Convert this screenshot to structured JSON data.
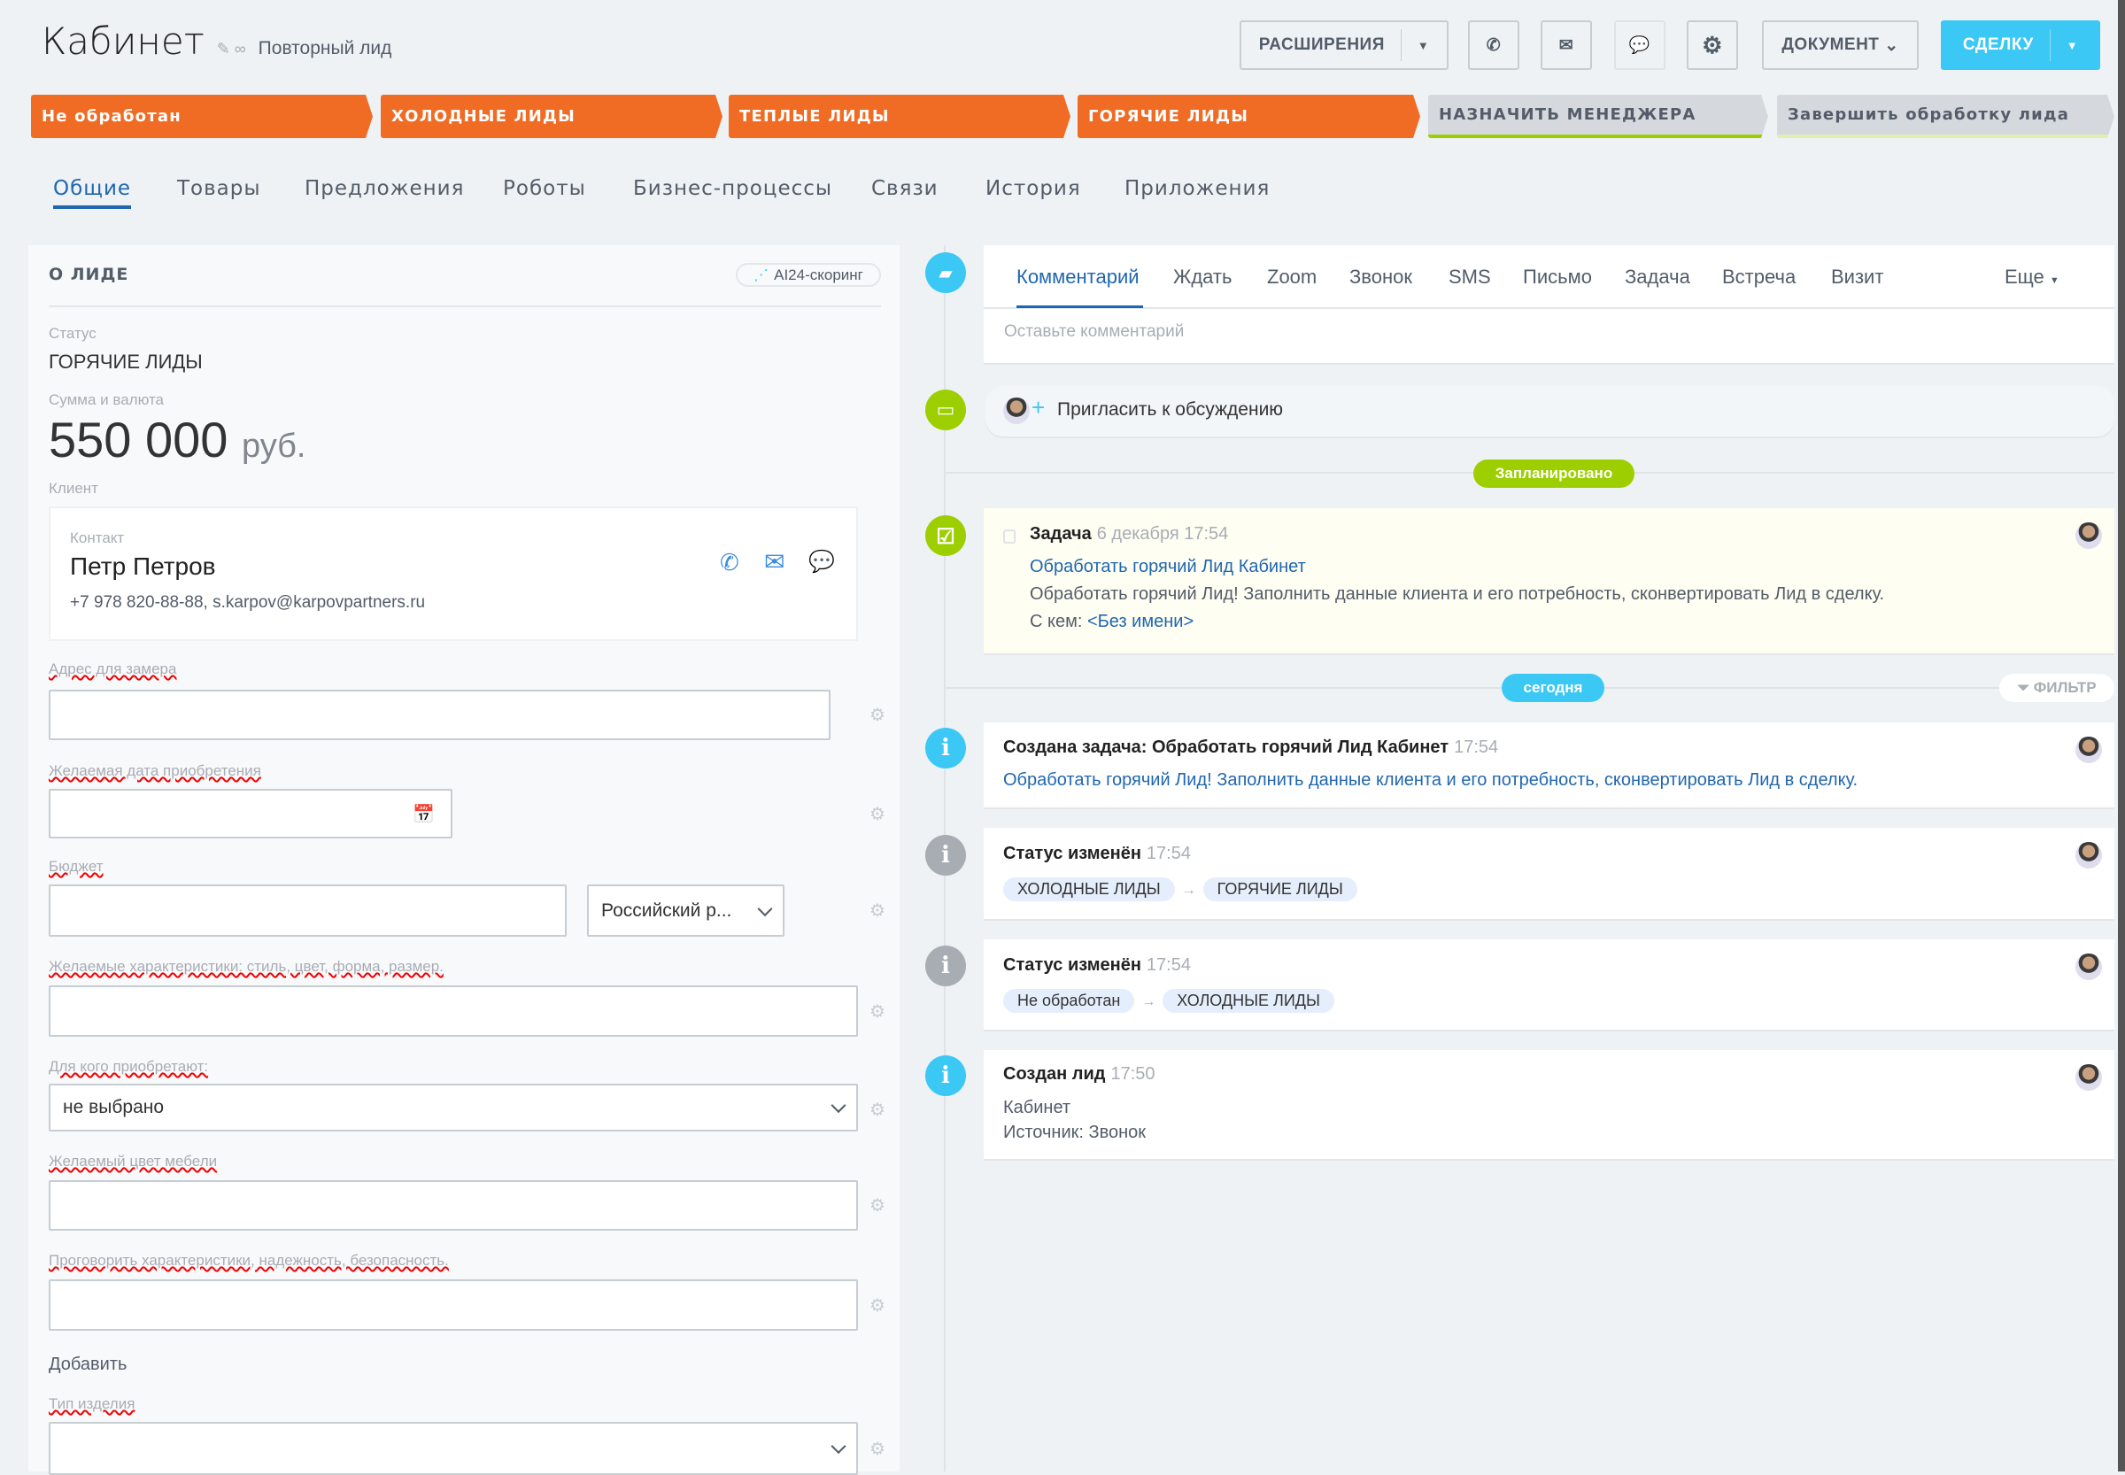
{
  "header": {
    "title": "Кабинет",
    "subtitle": "Повторный лид",
    "toolbar": {
      "extensions": "РАСШИРЕНИЯ",
      "document": "ДОКУМЕНТ",
      "deal": "СДЕЛКУ"
    }
  },
  "stages": [
    "Не обработан",
    "ХОЛОДНЫЕ ЛИДЫ",
    "ТЕПЛЫЕ ЛИДЫ",
    "ГОРЯЧИЕ ЛИДЫ",
    "НАЗНАЧИТЬ МЕНЕДЖЕРА",
    "Завершить обработку лида"
  ],
  "tabs": [
    "Общие",
    "Товары",
    "Предложения",
    "Роботы",
    "Бизнес-процессы",
    "Связи",
    "История",
    "Приложения"
  ],
  "about": {
    "heading": "О ЛИДЕ",
    "scoring": "AI24-скоринг",
    "status_label": "Статус",
    "status": "ГОРЯЧИЕ ЛИДЫ",
    "sum_label": "Сумма и валюта",
    "sum": "550 000",
    "currency": "руб.",
    "client_label": "Клиент",
    "contact": {
      "label": "Контакт",
      "name": "Петр Петров",
      "details": "+7 978 820-88-88, s.karpov@karpovpartners.ru"
    },
    "fields": {
      "address": "Адрес для замера",
      "date": "Желаемая дата приобретения",
      "budget": "Бюджет",
      "budget_currency": "Российский р...",
      "traits": "Желаемые характеристики: стиль, цвет, форма, размер.",
      "for_whom": "Для кого приобретают:",
      "for_whom_value": "не выбрано",
      "color": "Желаемый цвет мебели",
      "discuss": "Проговорить характеристики, надежность, безопасность.",
      "add": "Добавить",
      "product_type": "Тип изделия"
    }
  },
  "timeline": {
    "tabs": [
      "Комментарий",
      "Ждать",
      "Zoom",
      "Звонок",
      "SMS",
      "Письмо",
      "Задача",
      "Встреча",
      "Визит",
      "Еще"
    ],
    "comment_placeholder": "Оставьте комментарий",
    "invite": "Пригласить к обсуждению",
    "planned": "Запланировано",
    "today": "сегодня",
    "filter": "ФИЛЬТР",
    "task": {
      "title": "Задача",
      "time": "6 декабря 17:54",
      "link": "Обработать горячий Лид Кабинет",
      "text": "Обработать горячий Лид! Заполнить данные клиента и его потребность, сконвертировать Лид в сделку.",
      "with_label": "С кем:",
      "with": "<Без имени>"
    },
    "events": [
      {
        "title": "Создана задача: Обработать горячий Лид Кабинет",
        "time": "17:54",
        "text": "Обработать горячий Лид! Заполнить данные клиента и его потребность, сконвертировать Лид в сделку."
      },
      {
        "title": "Статус изменён",
        "time": "17:54",
        "from": "ХОЛОДНЫЕ ЛИДЫ",
        "to": "ГОРЯЧИЕ ЛИДЫ"
      },
      {
        "title": "Статус изменён",
        "time": "17:54",
        "from": "Не обработан",
        "to": "ХОЛОДНЫЕ ЛИДЫ"
      },
      {
        "title": "Создан лид",
        "time": "17:50",
        "line1": "Кабинет",
        "line2": "Источник: Звонок"
      }
    ]
  },
  "colors": {
    "stage_active": "#f06c24",
    "accent": "#3bc8f5",
    "link": "#2067b0",
    "planned": "#9dcf00"
  }
}
